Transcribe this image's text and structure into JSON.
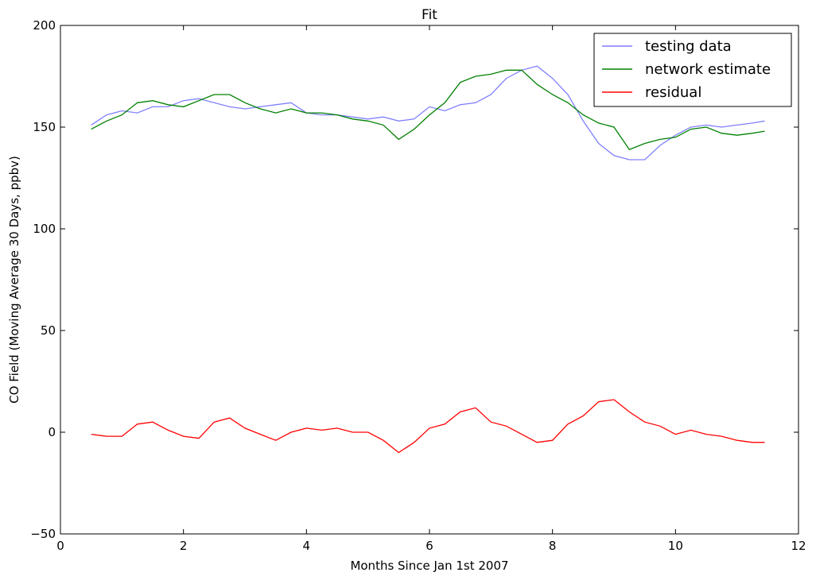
{
  "chart_data": {
    "type": "line",
    "title": "Fit",
    "xlabel": "Months Since Jan 1st 2007",
    "ylabel": "CO Field (Moving Average 30 Days, ppbv)",
    "xlim": [
      0,
      12
    ],
    "ylim": [
      -50,
      200
    ],
    "xticks": [
      "0",
      "2",
      "4",
      "6",
      "8",
      "10",
      "12"
    ],
    "yticks": [
      "200",
      "150",
      "100",
      "50",
      "0",
      "−50"
    ],
    "grid": false,
    "legend_position": "top-right",
    "series": [
      {
        "name": "testing data",
        "color": "#8080ff",
        "x": [
          0.5,
          0.75,
          1.0,
          1.25,
          1.5,
          1.75,
          2.0,
          2.25,
          2.5,
          2.75,
          3.0,
          3.25,
          3.5,
          3.75,
          4.0,
          4.25,
          4.5,
          4.75,
          5.0,
          5.25,
          5.5,
          5.75,
          6.0,
          6.25,
          6.5,
          6.75,
          7.0,
          7.25,
          7.5,
          7.75,
          8.0,
          8.25,
          8.5,
          8.75,
          9.0,
          9.25,
          9.5,
          9.75,
          10.0,
          10.25,
          10.5,
          10.75,
          11.0,
          11.25,
          11.45
        ],
        "y": [
          151,
          156,
          158,
          157,
          160,
          160,
          163,
          164,
          162,
          160,
          159,
          160,
          161,
          162,
          157,
          156,
          156,
          155,
          154,
          155,
          153,
          154,
          160,
          158,
          161,
          162,
          166,
          174,
          178,
          180,
          174,
          166,
          153,
          142,
          136,
          134,
          134,
          141,
          146,
          150,
          151,
          150,
          151,
          152,
          153
        ]
      },
      {
        "name": "network estimate",
        "color": "#008000",
        "x": [
          0.5,
          0.75,
          1.0,
          1.25,
          1.5,
          1.75,
          2.0,
          2.25,
          2.5,
          2.75,
          3.0,
          3.25,
          3.5,
          3.75,
          4.0,
          4.25,
          4.5,
          4.75,
          5.0,
          5.25,
          5.5,
          5.75,
          6.0,
          6.25,
          6.5,
          6.75,
          7.0,
          7.25,
          7.5,
          7.75,
          8.0,
          8.25,
          8.5,
          8.75,
          9.0,
          9.25,
          9.5,
          9.75,
          10.0,
          10.25,
          10.5,
          10.75,
          11.0,
          11.25,
          11.45
        ],
        "y": [
          149,
          153,
          156,
          162,
          163,
          161,
          160,
          163,
          166,
          166,
          162,
          159,
          157,
          159,
          157,
          157,
          156,
          154,
          153,
          151,
          144,
          149,
          156,
          162,
          172,
          175,
          176,
          178,
          178,
          171,
          166,
          162,
          156,
          152,
          150,
          139,
          142,
          144,
          145,
          149,
          150,
          147,
          146,
          147,
          148
        ]
      },
      {
        "name": "residual",
        "color": "#ff0000",
        "x": [
          0.5,
          0.75,
          1.0,
          1.25,
          1.5,
          1.75,
          2.0,
          2.25,
          2.5,
          2.75,
          3.0,
          3.25,
          3.5,
          3.75,
          4.0,
          4.25,
          4.5,
          4.75,
          5.0,
          5.25,
          5.5,
          5.75,
          6.0,
          6.25,
          6.5,
          6.75,
          7.0,
          7.25,
          7.5,
          7.75,
          8.0,
          8.25,
          8.5,
          8.75,
          9.0,
          9.25,
          9.5,
          9.75,
          10.0,
          10.25,
          10.5,
          10.75,
          11.0,
          11.25,
          11.45
        ],
        "y": [
          -1,
          -2,
          -2,
          4,
          5,
          1,
          -2,
          -3,
          5,
          7,
          2,
          -1,
          -4,
          0,
          2,
          1,
          2,
          0,
          0,
          -4,
          -10,
          -5,
          2,
          4,
          10,
          12,
          5,
          3,
          -1,
          -5,
          -4,
          4,
          8,
          15,
          16,
          10,
          5,
          3,
          -1,
          1,
          -1,
          -2,
          -4,
          -5,
          -5
        ]
      }
    ]
  }
}
